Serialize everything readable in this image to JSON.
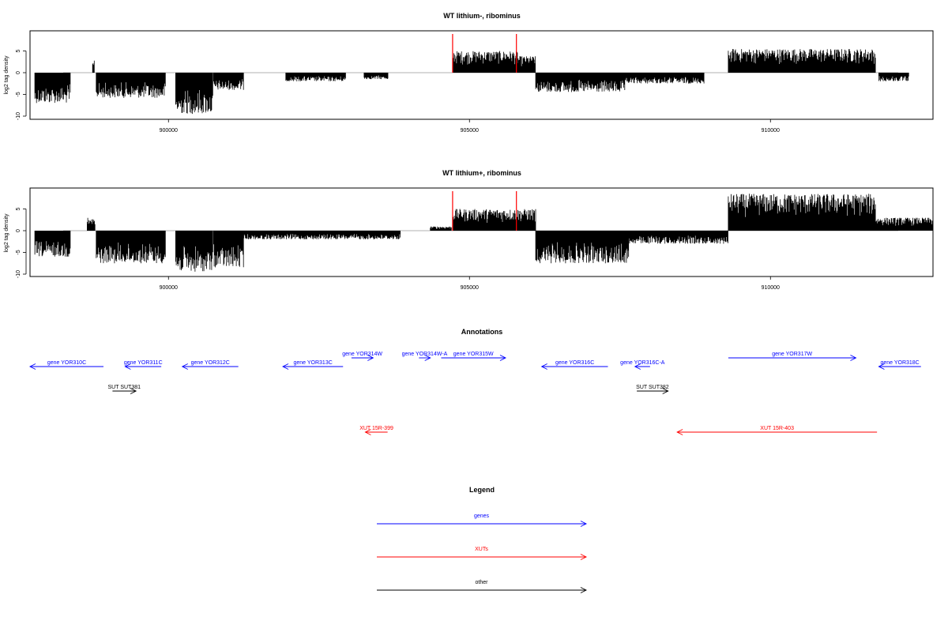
{
  "chart_data": [
    {
      "type": "bar",
      "title": "WT lithium-, ribominus",
      "ylabel": "log2 tag density",
      "xlim": [
        897700,
        912700
      ],
      "ylim": [
        -10,
        10
      ],
      "x_ticks": [
        900000,
        905000,
        910000
      ],
      "y_ticks": [
        -10,
        -5,
        0,
        5
      ],
      "grid": false,
      "baseline_color": "#999999",
      "bar_color": "#000000",
      "marker_color": "#ff0000",
      "markers_x": [
        904720,
        905780
      ],
      "segments": [
        {
          "start": 897780,
          "end": 898370,
          "value": -7.0
        },
        {
          "start": 898740,
          "end": 898770,
          "value": 3.0
        },
        {
          "start": 898800,
          "end": 899950,
          "value": -5.8
        },
        {
          "start": 900120,
          "end": 900740,
          "value": -9.5
        },
        {
          "start": 900750,
          "end": 901250,
          "value": -4.0
        },
        {
          "start": 901950,
          "end": 902950,
          "value": -2.0
        },
        {
          "start": 903250,
          "end": 903650,
          "value": -1.5
        },
        {
          "start": 904730,
          "end": 905800,
          "value": 5.0
        },
        {
          "start": 905800,
          "end": 906100,
          "value": 3.8
        },
        {
          "start": 906100,
          "end": 907600,
          "value": -4.5
        },
        {
          "start": 907600,
          "end": 908900,
          "value": -2.5
        },
        {
          "start": 909300,
          "end": 911750,
          "value": 5.5
        },
        {
          "start": 911800,
          "end": 912300,
          "value": -2.0
        }
      ]
    },
    {
      "type": "bar",
      "title": "WT lithium+, ribominus",
      "ylabel": "log2 tag density",
      "xlim": [
        897700,
        912700
      ],
      "ylim": [
        -10,
        10
      ],
      "x_ticks": [
        900000,
        905000,
        910000
      ],
      "y_ticks": [
        -10,
        -5,
        0,
        5
      ],
      "grid": false,
      "baseline_color": "#999999",
      "bar_color": "#000000",
      "marker_color": "#ff0000",
      "markers_x": [
        904720,
        905780
      ],
      "segments": [
        {
          "start": 897780,
          "end": 898370,
          "value": -6.0
        },
        {
          "start": 898650,
          "end": 898780,
          "value": 3.0
        },
        {
          "start": 898800,
          "end": 899950,
          "value": -7.5
        },
        {
          "start": 900120,
          "end": 900740,
          "value": -9.5
        },
        {
          "start": 900750,
          "end": 901250,
          "value": -8.5
        },
        {
          "start": 901250,
          "end": 903850,
          "value": -2.0
        },
        {
          "start": 904350,
          "end": 904700,
          "value": 1.0
        },
        {
          "start": 904730,
          "end": 906100,
          "value": 5.0
        },
        {
          "start": 906100,
          "end": 907650,
          "value": -7.5
        },
        {
          "start": 907650,
          "end": 909300,
          "value": -3.0
        },
        {
          "start": 909300,
          "end": 911750,
          "value": 8.5
        },
        {
          "start": 911750,
          "end": 912700,
          "value": 3.0
        }
      ]
    }
  ],
  "annotations": {
    "title": "Annotations",
    "features": [
      {
        "label": "gene YOR310C",
        "strand": "-",
        "start": 897700,
        "end": 898920,
        "row": 2,
        "color": "#0000ff"
      },
      {
        "label": "gene YOR311C",
        "strand": "-",
        "start": 899280,
        "end": 899880,
        "row": 2,
        "color": "#0000ff"
      },
      {
        "label": "gene YOR312C",
        "strand": "-",
        "start": 900230,
        "end": 901160,
        "row": 2,
        "color": "#0000ff"
      },
      {
        "label": "gene YOR313C",
        "strand": "-",
        "start": 901900,
        "end": 902900,
        "row": 2,
        "color": "#0000ff"
      },
      {
        "label": "gene YOR314W",
        "strand": "+",
        "start": 903040,
        "end": 903400,
        "row": 1,
        "color": "#0000ff"
      },
      {
        "label": "gene YOR314W-A",
        "strand": "+",
        "start": 904160,
        "end": 904350,
        "row": 1,
        "color": "#0000ff"
      },
      {
        "label": "gene YOR315W",
        "strand": "+",
        "start": 904530,
        "end": 905600,
        "row": 1,
        "color": "#0000ff"
      },
      {
        "label": "gene YOR316C",
        "strand": "-",
        "start": 906200,
        "end": 907300,
        "row": 2,
        "color": "#0000ff"
      },
      {
        "label": "gene YOR316C-A",
        "strand": "-",
        "start": 907750,
        "end": 908000,
        "row": 2,
        "color": "#0000ff"
      },
      {
        "label": "gene YOR317W",
        "strand": "+",
        "start": 909300,
        "end": 911420,
        "row": 1,
        "color": "#0000ff"
      },
      {
        "label": "gene YOR318C",
        "strand": "-",
        "start": 911800,
        "end": 912500,
        "row": 2,
        "color": "#0000ff"
      },
      {
        "label": "SUT SUT381",
        "strand": "+",
        "start": 899070,
        "end": 899460,
        "row": 3,
        "color": "#000000"
      },
      {
        "label": "SUT SUT382",
        "strand": "+",
        "start": 907780,
        "end": 908300,
        "row": 3,
        "color": "#000000"
      },
      {
        "label": "XUT 15R-399",
        "strand": "-",
        "start": 903270,
        "end": 903640,
        "row": 4,
        "color": "#ff0000"
      },
      {
        "label": "XUT 15R-403",
        "strand": "-",
        "start": 908450,
        "end": 911770,
        "row": 4,
        "color": "#ff0000"
      }
    ]
  },
  "legend": {
    "title": "Legend",
    "items": [
      {
        "label": "genes",
        "color": "#0000ff"
      },
      {
        "label": "XUTs",
        "color": "#ff0000"
      },
      {
        "label": "other",
        "color": "#000000"
      }
    ]
  }
}
